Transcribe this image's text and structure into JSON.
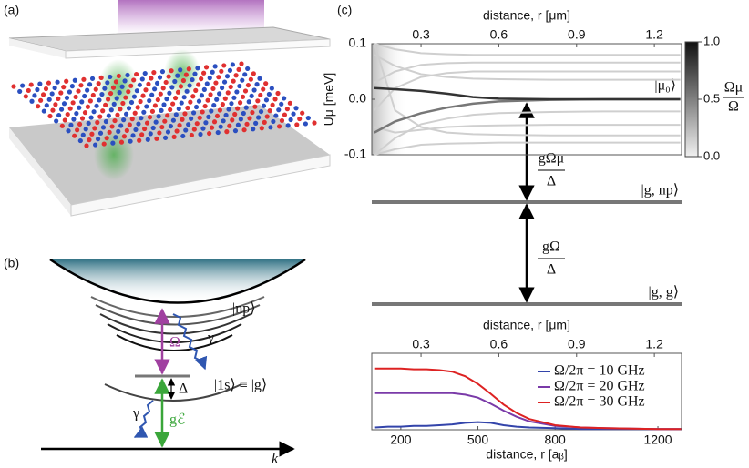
{
  "panels": {
    "a": "(a)",
    "b": "(b)",
    "c": "(c)"
  },
  "energy_diagram": {
    "np": "|np⟩",
    "omega": "Ω",
    "gamma_top": "γ",
    "delta": "Δ",
    "ground": "|1s⟩ ≡ |g⟩",
    "coupling": "gℰ",
    "gamma_bottom": "γ",
    "k": "k"
  },
  "levels": {
    "mu_coupling": {
      "numerator": "gΩμ",
      "denominator": "Δ"
    },
    "omega_coupling": {
      "numerator": "gΩ",
      "denominator": "Δ"
    },
    "g_np": "|g, np⟩",
    "g_g": "|g, g⟩"
  },
  "chart_data": [
    {
      "type": "line",
      "x_label": "distance, r [μm]",
      "y_label": "Uμ [meV]",
      "state_label": "|μ₀⟩",
      "x": [
        0.12,
        0.2,
        0.3,
        0.4,
        0.5,
        0.6,
        0.8,
        1.0,
        1.3
      ],
      "xlim": [
        0.11,
        1.305
      ],
      "xticks": [
        0.3,
        0.6,
        0.9,
        1.2
      ],
      "ylim": [
        -0.1,
        0.1
      ],
      "yticks": [
        {
          "value": 0.1,
          "label": "0.1"
        },
        {
          "value": 0,
          "label": "0.0"
        },
        {
          "value": -0.1,
          "label": "-0.1"
        }
      ],
      "colorbar": {
        "numerator": "Ωμ",
        "denominator": "Ω",
        "lim": [
          0,
          1
        ],
        "ticks": [
          {
            "value": 1,
            "label": "1.0"
          },
          {
            "value": 0.5,
            "label": "0.5"
          },
          {
            "value": 0,
            "label": "0.0"
          }
        ]
      },
      "series": [
        {
          "color": "#cfcfcf",
          "values": [
            0.1,
            0.09,
            0.083,
            0.081,
            0.08,
            0.08,
            0.08,
            0.08,
            0.08
          ]
        },
        {
          "color": "#cfcfcf",
          "values": [
            0.03,
            0.05,
            0.062,
            0.065,
            0.066,
            0.066,
            0.066,
            0.066,
            0.066
          ]
        },
        {
          "color": "#cfcfcf",
          "values": [
            -0.02,
            0.02,
            0.04,
            0.047,
            0.05,
            0.05,
            0.05,
            0.05,
            0.05
          ]
        },
        {
          "color": "#cfcfcf",
          "values": [
            0.08,
            0.06,
            0.045,
            0.04,
            0.037,
            0.036,
            0.035,
            0.035,
            0.035
          ]
        },
        {
          "color": "#cfcfcf",
          "values": [
            -0.1,
            -0.07,
            -0.045,
            -0.035,
            -0.028,
            -0.025,
            -0.023,
            -0.022,
            -0.022
          ]
        },
        {
          "color": "#cfcfcf",
          "values": [
            -0.05,
            -0.06,
            -0.055,
            -0.05,
            -0.048,
            -0.047,
            -0.046,
            -0.046,
            -0.046
          ]
        },
        {
          "color": "#cfcfcf",
          "values": [
            0.1,
            -0.02,
            -0.05,
            -0.06,
            -0.063,
            -0.064,
            -0.065,
            -0.065,
            -0.065
          ]
        },
        {
          "color": "#cfcfcf",
          "values": [
            -0.1,
            -0.09,
            -0.082,
            -0.08,
            -0.079,
            -0.078,
            -0.078,
            -0.078,
            -0.078
          ]
        },
        {
          "color": "#777777",
          "values": [
            -0.06,
            -0.04,
            -0.025,
            -0.015,
            -0.008,
            -0.004,
            -0.001,
            0,
            0
          ]
        },
        {
          "color": "#333333",
          "values": [
            0.02,
            0.018,
            0.015,
            0.01,
            0.004,
            0.001,
            0,
            0,
            0
          ]
        }
      ]
    },
    {
      "type": "line",
      "x_label": "distance, r [aᵦ]",
      "x2_label": "distance, r [μm]",
      "x": [
        100,
        150,
        200,
        250,
        300,
        350,
        400,
        450,
        500,
        550,
        600,
        650,
        700,
        800,
        900,
        1000,
        1200,
        1290
      ],
      "xlim": [
        87,
        1292
      ],
      "xticks": [
        200,
        500,
        800,
        1200
      ],
      "x2lim": [
        0.11,
        1.305
      ],
      "x2ticks": [
        0.3,
        0.6,
        0.9,
        1.2
      ],
      "ylim": [
        0,
        1
      ],
      "series": [
        {
          "name": "Ω/2π = 10 GHz",
          "color": "#3344aa",
          "values": [
            0.03,
            0.04,
            0.04,
            0.05,
            0.05,
            0.06,
            0.07,
            0.09,
            0.1,
            0.09,
            0.06,
            0.04,
            0.03,
            0.02,
            0.01,
            0.01,
            0.01,
            0.01
          ]
        },
        {
          "name": "Ω/2π = 20 GHz",
          "color": "#7a3aa8",
          "values": [
            0.48,
            0.48,
            0.48,
            0.48,
            0.48,
            0.48,
            0.48,
            0.46,
            0.42,
            0.34,
            0.25,
            0.17,
            0.11,
            0.05,
            0.03,
            0.02,
            0.01,
            0.01
          ]
        },
        {
          "name": "Ω/2π = 30 GHz",
          "color": "#dd2222",
          "values": [
            0.8,
            0.8,
            0.8,
            0.79,
            0.79,
            0.78,
            0.76,
            0.7,
            0.6,
            0.47,
            0.33,
            0.22,
            0.14,
            0.06,
            0.03,
            0.02,
            0.01,
            0.01
          ]
        }
      ]
    }
  ]
}
